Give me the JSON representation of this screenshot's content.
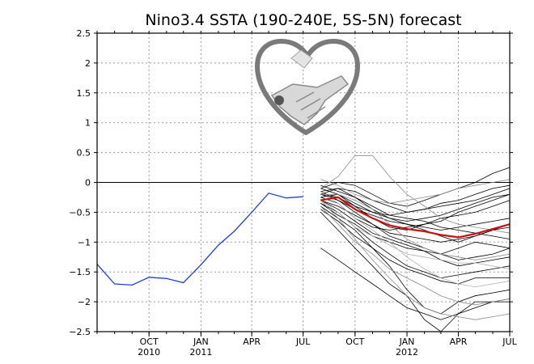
{
  "chart_data": {
    "type": "line",
    "title": "Nino3.4 SSTA (190-240E, 5S-5N) forecast",
    "xlabel": "",
    "ylabel": "",
    "x_range": [
      "2010-07-15",
      "2012-07-15"
    ],
    "ylim": [
      -2.5,
      2.5
    ],
    "y_ticks": [
      2.5,
      2,
      1.5,
      1,
      0.5,
      0,
      -0.5,
      -1,
      -1.5,
      -2,
      -2.5
    ],
    "y_tick_labels": [
      "2.5",
      "2",
      "1.5",
      "1",
      "0.5",
      "0",
      "−0.5",
      "−1",
      "−1.5",
      "−2",
      "−2.5"
    ],
    "x_ticks": [
      {
        "date": "2010-10-15",
        "label": "OCT",
        "sublabel": "2010"
      },
      {
        "date": "2011-01-15",
        "label": "JAN",
        "sublabel": "2011"
      },
      {
        "date": "2011-04-15",
        "label": "APR",
        "sublabel": ""
      },
      {
        "date": "2011-07-15",
        "label": "JUL",
        "sublabel": ""
      },
      {
        "date": "2011-10-15",
        "label": "OCT",
        "sublabel": ""
      },
      {
        "date": "2012-01-15",
        "label": "JAN",
        "sublabel": "2012"
      },
      {
        "date": "2012-04-15",
        "label": "APR",
        "sublabel": ""
      },
      {
        "date": "2012-07-15",
        "label": "JUL",
        "sublabel": ""
      }
    ],
    "grid": true,
    "zero_line": true,
    "observed": {
      "color": "#1f3fd9",
      "x": [
        "2010-07-15",
        "2010-08-15",
        "2010-09-15",
        "2010-10-15",
        "2010-11-15",
        "2010-12-15",
        "2011-01-15",
        "2011-02-15",
        "2011-03-15",
        "2011-04-15",
        "2011-05-15",
        "2011-06-15",
        "2011-07-15"
      ],
      "y": [
        -1.37,
        -1.7,
        -1.72,
        -1.59,
        -1.61,
        -1.68,
        -1.38,
        -1.05,
        -0.82,
        -0.5,
        -0.18,
        -0.26,
        -0.24
      ]
    },
    "ensemble_mean": {
      "color": "#cc1111",
      "x": [
        "2011-08-15",
        "2011-09-15",
        "2011-10-15",
        "2011-11-15",
        "2011-12-15",
        "2012-01-15",
        "2012-02-15",
        "2012-03-15",
        "2012-04-15",
        "2012-05-15",
        "2012-06-15",
        "2012-07-15"
      ],
      "y": [
        -0.3,
        -0.25,
        -0.45,
        -0.6,
        -0.72,
        -0.78,
        -0.82,
        -0.88,
        -0.92,
        -0.86,
        -0.78,
        -0.7
      ]
    },
    "ensemble_members": [
      {
        "color": "#000000",
        "y": [
          -0.15,
          -0.3,
          -0.5,
          -0.7,
          -0.85,
          -0.9,
          -0.95,
          -1.0,
          -0.95,
          -0.9,
          -0.8,
          -0.7
        ]
      },
      {
        "color": "#000000",
        "y": [
          -0.25,
          -0.2,
          -0.4,
          -0.6,
          -0.75,
          -0.8,
          -0.7,
          -0.6,
          -0.55,
          -0.5,
          -0.4,
          -0.3
        ]
      },
      {
        "color": "#000000",
        "y": [
          -0.35,
          -0.5,
          -0.75,
          -1.0,
          -1.2,
          -1.4,
          -1.5,
          -1.6,
          -1.55,
          -1.5,
          -1.45,
          -1.4
        ]
      },
      {
        "color": "#000000",
        "y": [
          -0.2,
          -0.1,
          -0.15,
          -0.3,
          -0.4,
          -0.5,
          -0.45,
          -0.35,
          -0.3,
          -0.2,
          -0.1,
          -0.05
        ]
      },
      {
        "color": "#000000",
        "y": [
          -0.1,
          0.0,
          -0.05,
          -0.2,
          -0.35,
          -0.4,
          -0.3,
          -0.2,
          -0.1,
          0.0,
          0.15,
          0.25
        ]
      },
      {
        "color": "#000000",
        "y": [
          -0.4,
          -0.6,
          -0.8,
          -1.1,
          -1.4,
          -1.8,
          -2.1,
          -2.2,
          -2.0,
          -1.9,
          -1.85,
          -1.8
        ]
      },
      {
        "color": "#000000",
        "y": [
          -0.3,
          -0.4,
          -0.55,
          -0.7,
          -0.9,
          -1.0,
          -1.1,
          -1.2,
          -1.3,
          -1.25,
          -1.2,
          -1.1
        ]
      },
      {
        "color": "#000000",
        "y": [
          -0.2,
          -0.3,
          -0.45,
          -0.55,
          -0.65,
          -0.7,
          -0.75,
          -0.8,
          -0.75,
          -0.7,
          -0.65,
          -0.6
        ]
      },
      {
        "color": "#000000",
        "y": [
          -0.5,
          -0.8,
          -1.1,
          -1.4,
          -1.7,
          -1.9,
          -2.3,
          -2.5,
          -2.2,
          -2.0,
          -2.0,
          -2.0
        ]
      },
      {
        "color": "#000000",
        "y": [
          -0.25,
          -0.35,
          -0.6,
          -0.75,
          -0.8,
          -0.75,
          -0.7,
          -0.65,
          -0.5,
          -0.4,
          -0.3,
          -0.2
        ]
      },
      {
        "color": "#000000",
        "y": [
          -0.15,
          -0.1,
          -0.25,
          -0.45,
          -0.6,
          -0.65,
          -0.6,
          -0.55,
          -0.45,
          -0.35,
          -0.25,
          -0.2
        ]
      },
      {
        "color": "#000000",
        "y": [
          -0.45,
          -0.65,
          -0.9,
          -1.1,
          -1.3,
          -1.45,
          -1.55,
          -1.65,
          -1.7,
          -1.6,
          -1.6,
          -1.6
        ]
      },
      {
        "color": "#000000",
        "y": [
          -0.3,
          -0.45,
          -0.65,
          -0.85,
          -0.95,
          -1.05,
          -1.15,
          -1.2,
          -1.1,
          -1.0,
          -1.05,
          -1.1
        ]
      },
      {
        "color": "#000000",
        "y": [
          -1.1,
          -1.3,
          -1.5,
          -1.7,
          -1.9,
          -2.1,
          -2.2,
          -2.3,
          -2.2,
          -2.1,
          -2.0,
          -1.95
        ]
      },
      {
        "color": "#000000",
        "y": [
          -0.2,
          -0.25,
          -0.4,
          -0.5,
          -0.55,
          -0.6,
          -0.65,
          -0.75,
          -0.8,
          -0.85,
          -0.9,
          -0.95
        ]
      },
      {
        "color": "#000000",
        "y": [
          -0.35,
          -0.55,
          -0.7,
          -0.9,
          -1.0,
          -1.1,
          -1.15,
          -1.3,
          -1.4,
          -1.35,
          -1.3,
          -1.25
        ]
      },
      {
        "color": "#000000",
        "y": [
          -0.1,
          -0.2,
          -0.35,
          -0.5,
          -0.6,
          -0.7,
          -0.8,
          -0.9,
          -1.0,
          -0.9,
          -0.8,
          -0.75
        ]
      },
      {
        "color": "#000000",
        "y": [
          -0.05,
          -0.15,
          -0.25,
          -0.4,
          -0.55,
          -0.5,
          -0.45,
          -0.4,
          -0.35,
          -0.3,
          -0.2,
          -0.1
        ]
      },
      {
        "color": "#8a8a8a",
        "y": [
          -0.1,
          0.1,
          0.45,
          0.45,
          0.1,
          -0.2,
          -0.4,
          -0.6,
          -0.7,
          -0.75,
          -0.8,
          -0.85
        ]
      },
      {
        "color": "#8a8a8a",
        "y": [
          -0.3,
          -0.6,
          -0.95,
          -1.3,
          -1.6,
          -1.9,
          -2.1,
          -2.2,
          -2.25,
          -2.3,
          -2.25,
          -2.2
        ]
      },
      {
        "color": "#8a8a8a",
        "y": [
          0.05,
          -0.05,
          -0.2,
          -0.3,
          -0.35,
          -0.3,
          -0.25,
          -0.2,
          -0.1,
          -0.05,
          0.0,
          0.05
        ]
      },
      {
        "color": "#8a8a8a",
        "y": [
          -0.4,
          -0.7,
          -1.0,
          -1.2,
          -1.45,
          -1.6,
          -1.75,
          -1.9,
          -2.0,
          -2.05,
          -2.0,
          -1.95
        ]
      },
      {
        "color": "#8a8a8a",
        "y": [
          -0.2,
          -0.2,
          -0.3,
          -0.45,
          -0.7,
          -0.95,
          -1.1,
          -1.2,
          -1.25,
          -1.3,
          -1.25,
          -1.2
        ]
      },
      {
        "color": "#b0b0b0",
        "y": [
          -0.15,
          -0.35,
          -0.6,
          -0.8,
          -1.0,
          -1.25,
          -1.45,
          -1.6,
          -1.7,
          -1.75,
          -1.7,
          -1.65
        ]
      },
      {
        "color": "#b0b0b0",
        "y": [
          -0.3,
          -0.5,
          -0.75,
          -0.9,
          -1.05,
          -1.2,
          -1.25,
          -1.3,
          -1.35,
          -1.35,
          -1.4,
          -1.45
        ]
      }
    ]
  }
}
